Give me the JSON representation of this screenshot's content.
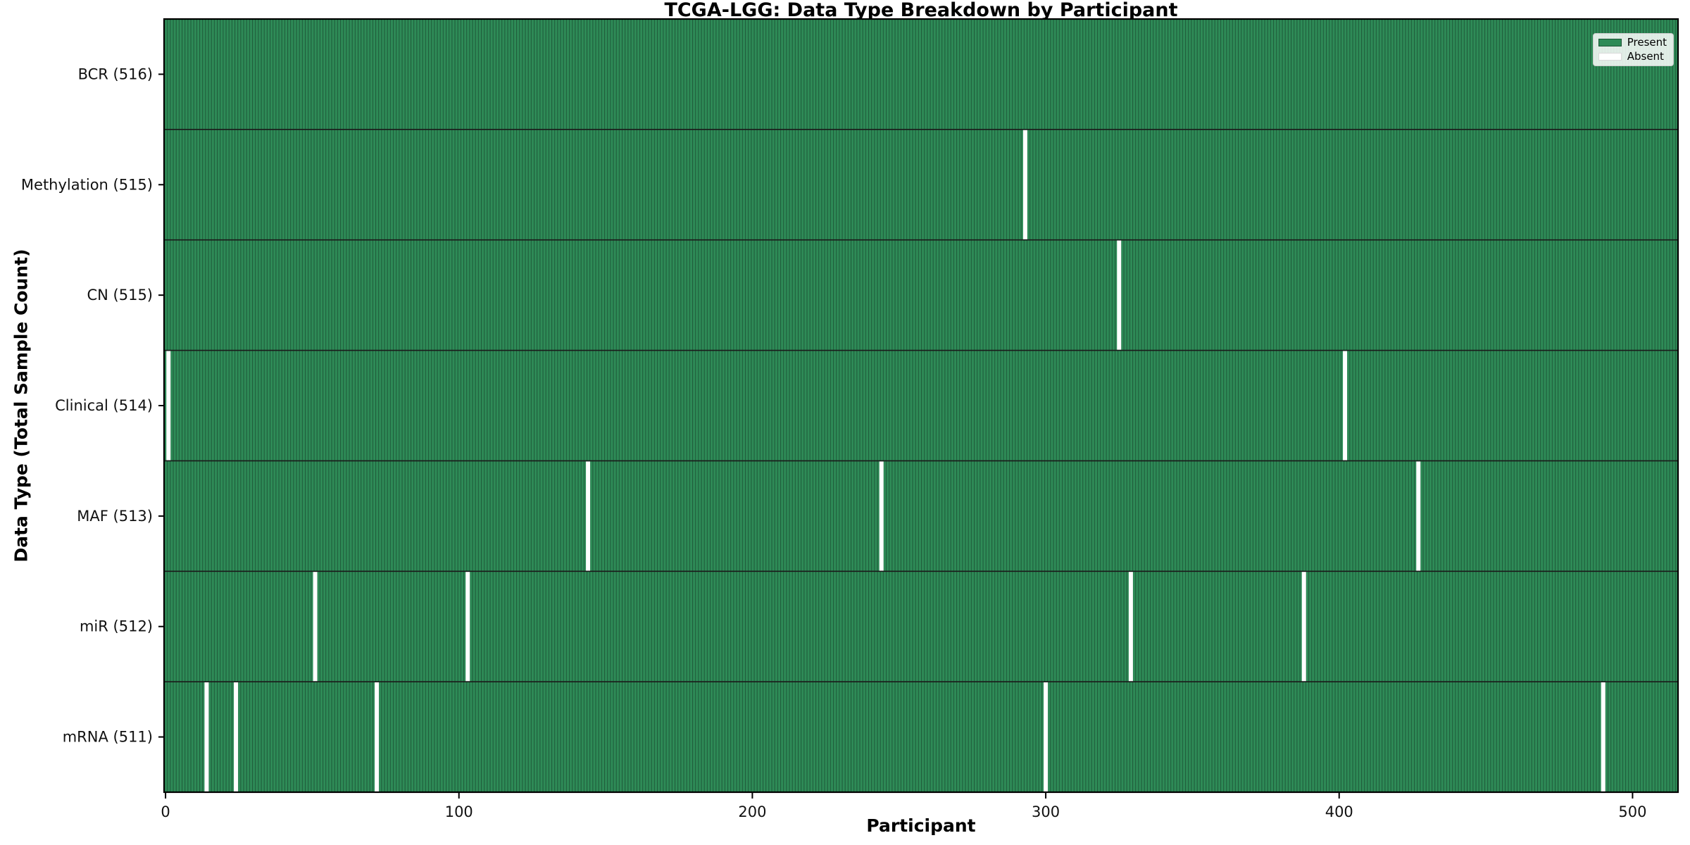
{
  "title": "TCGA-LGG: Data Type Breakdown by Participant",
  "chart_data": {
    "type": "heatmap",
    "title": "TCGA-LGG: Data Type Breakdown by Participant",
    "xlabel": "Participant",
    "ylabel": "Data Type (Total Sample Count)",
    "x_ticks": [
      0,
      100,
      200,
      300,
      400,
      500
    ],
    "x_range": [
      -0.5,
      515.5
    ],
    "n_participants": 516,
    "grid": false,
    "legend": {
      "position": "upper right",
      "entries": [
        {
          "label": "Present",
          "color": "#2e8b57"
        },
        {
          "label": "Absent",
          "color": "#ffffff"
        }
      ]
    },
    "rows": [
      {
        "label": "BCR (516)",
        "data_type": "BCR",
        "total": 516,
        "absent_participants": []
      },
      {
        "label": "Methylation (515)",
        "data_type": "Methylation",
        "total": 515,
        "absent_participants": [
          293
        ]
      },
      {
        "label": "CN (515)",
        "data_type": "CN",
        "total": 515,
        "absent_participants": [
          325
        ]
      },
      {
        "label": "Clinical (514)",
        "data_type": "Clinical",
        "total": 514,
        "absent_participants": [
          1,
          402
        ]
      },
      {
        "label": "MAF (513)",
        "data_type": "MAF",
        "total": 513,
        "absent_participants": [
          144,
          244,
          427
        ]
      },
      {
        "label": "miR (512)",
        "data_type": "miR",
        "total": 512,
        "absent_participants": [
          51,
          103,
          329,
          388
        ]
      },
      {
        "label": "mRNA (511)",
        "data_type": "mRNA",
        "total": 511,
        "absent_participants": [
          14,
          24,
          72,
          300,
          490
        ]
      }
    ],
    "colors": {
      "present": "#2e8b57",
      "absent": "#ffffff",
      "bar_edge": "#1f5c3b",
      "row_border": "#1a1a1a",
      "spine": "#000000",
      "tick_text": "#111111"
    }
  }
}
